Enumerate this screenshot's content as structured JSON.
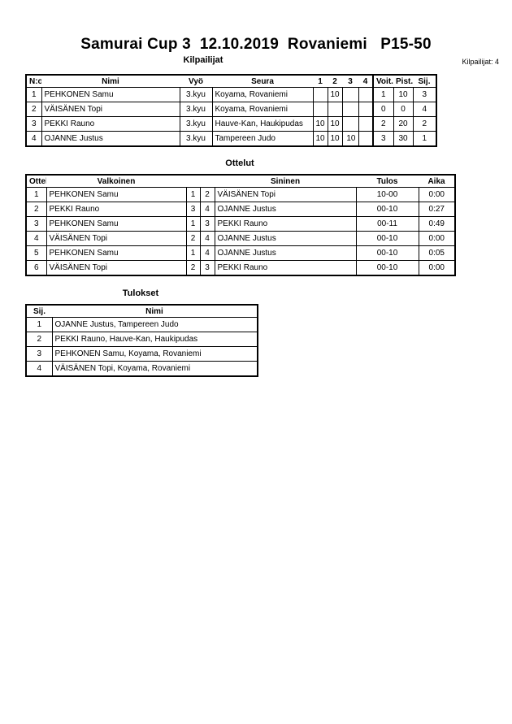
{
  "title": "Samurai Cup 3  12.10.2019  Rovaniemi   P15-50",
  "competitors": {
    "heading": "Kilpailijat",
    "count_label": "Kilpailijat: 4",
    "headers": [
      "N:o",
      "Nimi",
      "Vyö",
      "Seura",
      "1",
      "2",
      "3",
      "4",
      "Voit.",
      "Pist.",
      "Sij."
    ],
    "rows": [
      [
        "1",
        "PEHKONEN Samu",
        "3.kyu",
        "Koyama, Rovaniemi",
        "",
        "10",
        "",
        "",
        "1",
        "10",
        "3"
      ],
      [
        "2",
        "VÄISÄNEN Topi",
        "3.kyu",
        "Koyama, Rovaniemi",
        "",
        "",
        "",
        "",
        "0",
        "0",
        "4"
      ],
      [
        "3",
        "PEKKI Rauno",
        "3.kyu",
        "Hauve-Kan, Haukipudas",
        "10",
        "10",
        "",
        "",
        "2",
        "20",
        "2"
      ],
      [
        "4",
        "OJANNE Justus",
        "3.kyu",
        "Tampereen Judo",
        "10",
        "10",
        "10",
        "",
        "3",
        "30",
        "1"
      ]
    ]
  },
  "matches": {
    "heading": "Ottelut",
    "headers": [
      "Ottelu",
      "Valkoinen",
      "",
      "",
      "Sininen",
      "Tulos",
      "Aika"
    ],
    "rows": [
      [
        "1",
        "PEHKONEN Samu",
        "1",
        "2",
        "VÄISÄNEN Topi",
        "10-00",
        "0:00"
      ],
      [
        "2",
        "PEKKI Rauno",
        "3",
        "4",
        "OJANNE Justus",
        "00-10",
        "0:27"
      ],
      [
        "3",
        "PEHKONEN Samu",
        "1",
        "3",
        "PEKKI Rauno",
        "00-11",
        "0:49"
      ],
      [
        "4",
        "VÄISÄNEN Topi",
        "2",
        "4",
        "OJANNE Justus",
        "00-10",
        "0:00"
      ],
      [
        "5",
        "PEHKONEN Samu",
        "1",
        "4",
        "OJANNE Justus",
        "00-10",
        "0:05"
      ],
      [
        "6",
        "VÄISÄNEN Topi",
        "2",
        "3",
        "PEKKI Rauno",
        "00-10",
        "0:00"
      ]
    ]
  },
  "results": {
    "heading": "Tulokset",
    "headers": [
      "Sij.",
      "Nimi"
    ],
    "rows": [
      [
        "1",
        "OJANNE Justus, Tampereen Judo"
      ],
      [
        "2",
        "PEKKI Rauno, Hauve-Kan, Haukipudas"
      ],
      [
        "3",
        "PEHKONEN Samu, Koyama, Rovaniemi"
      ],
      [
        "4",
        "VÄISÄNEN Topi, Koyama, Rovaniemi"
      ]
    ]
  }
}
